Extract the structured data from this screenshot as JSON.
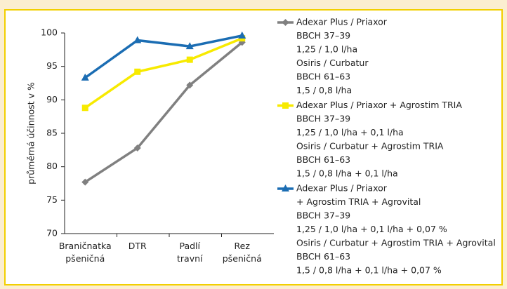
{
  "chart_data": {
    "type": "line",
    "y_label": "průměrná účinnost v %",
    "categories": [
      [
        "Braničnatka",
        "pšeničná"
      ],
      [
        "DTR"
      ],
      [
        "Padlí",
        "travní"
      ],
      [
        "Rez",
        "pšeničná"
      ]
    ],
    "ylim": [
      70,
      100
    ],
    "yticks": [
      70,
      75,
      80,
      85,
      90,
      95,
      100
    ],
    "series": [
      {
        "name": [
          "Adexar Plus / Priaxor",
          "BBCH 37–39",
          "1,25 / 1,0 l/ha",
          "Osiris / Curbatur",
          "BBCH 61–63",
          "1,5 / 0,8 l/ha"
        ],
        "color": "#808080",
        "marker": "diamond",
        "values": [
          77.7,
          82.8,
          92.2,
          98.6
        ]
      },
      {
        "name": [
          "Adexar Plus / Priaxor + Agrostim TRIA",
          "BBCH 37–39",
          "1,25 / 1,0 l/ha + 0,1 l/ha",
          "Osiris / Curbatur + Agrostim TRIA",
          "BBCH 61–63",
          "1,5 / 0,8 l/ha + 0,1 l/ha"
        ],
        "color": "#f7ea00",
        "marker": "square",
        "values": [
          88.8,
          94.2,
          96.0,
          99.2
        ]
      },
      {
        "name": [
          "Adexar Plus / Priaxor",
          "+ Agrostim TRIA + Agrovital",
          "BBCH 37–39",
          "1,25 / 1,0 l/ha + 0,1 l/ha + 0,07 %",
          "Osiris / Curbatur + Agrostim TRIA + Agrovital",
          "BBCH 61–63",
          "1,5 / 0,8 l/ha + 0,1 l/ha + 0,07 %"
        ],
        "color": "#1b6db3",
        "marker": "triangle",
        "values": [
          93.3,
          98.9,
          98.0,
          99.6
        ]
      }
    ]
  }
}
